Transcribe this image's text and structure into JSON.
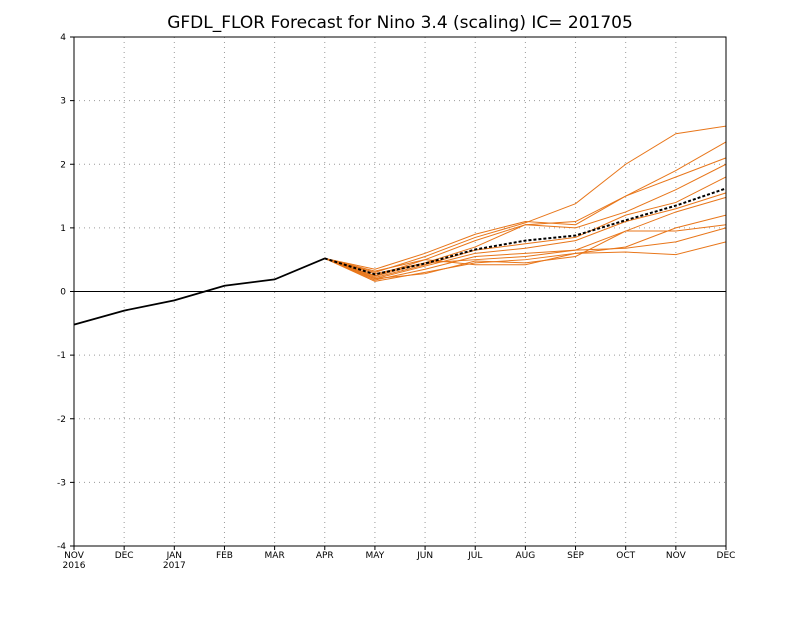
{
  "chart_data": {
    "type": "line",
    "title": "GFDL_FLOR Forecast for Nino 3.4 (scaling) IC= 201705",
    "xlabel": "",
    "ylabel": "",
    "ylim": [
      -4,
      4
    ],
    "y_ticks": [
      -4,
      -3,
      -2,
      -1,
      0,
      1,
      2,
      3,
      4
    ],
    "grid": true,
    "x_ticks": [
      {
        "label": "NOV",
        "sub": "2016"
      },
      {
        "label": "DEC",
        "sub": ""
      },
      {
        "label": "JAN",
        "sub": "2017"
      },
      {
        "label": "FEB",
        "sub": ""
      },
      {
        "label": "MAR",
        "sub": ""
      },
      {
        "label": "APR",
        "sub": ""
      },
      {
        "label": "MAY",
        "sub": ""
      },
      {
        "label": "JUN",
        "sub": ""
      },
      {
        "label": "JUL",
        "sub": ""
      },
      {
        "label": "AUG",
        "sub": ""
      },
      {
        "label": "SEP",
        "sub": ""
      },
      {
        "label": "OCT",
        "sub": ""
      },
      {
        "label": "NOV",
        "sub": ""
      },
      {
        "label": "DEC",
        "sub": ""
      }
    ],
    "observed": {
      "color": "#000000",
      "x": [
        0,
        1,
        2,
        3,
        4,
        5
      ],
      "values": [
        -0.52,
        -0.3,
        -0.14,
        0.09,
        0.19,
        0.52
      ]
    },
    "ensemble_color": "#e8761a",
    "ensemble_x": [
      5,
      6,
      7,
      8,
      9,
      10,
      11,
      12,
      13
    ],
    "ensemble": [
      [
        0.52,
        0.3,
        0.55,
        0.85,
        1.08,
        1.38,
        2.0,
        2.48,
        2.6
      ],
      [
        0.52,
        0.25,
        0.5,
        0.8,
        1.05,
        1.1,
        1.5,
        1.9,
        2.35
      ],
      [
        0.52,
        0.35,
        0.6,
        0.9,
        1.1,
        1.05,
        1.5,
        1.8,
        2.1
      ],
      [
        0.52,
        0.28,
        0.45,
        0.7,
        1.05,
        1.0,
        1.25,
        1.6,
        2.0
      ],
      [
        0.52,
        0.22,
        0.42,
        0.65,
        0.75,
        0.85,
        1.2,
        1.4,
        1.8
      ],
      [
        0.52,
        0.2,
        0.4,
        0.6,
        0.68,
        0.8,
        1.1,
        1.3,
        1.55
      ],
      [
        0.52,
        0.18,
        0.35,
        0.55,
        0.6,
        0.65,
        0.95,
        1.25,
        1.48
      ],
      [
        0.52,
        0.16,
        0.3,
        0.45,
        0.5,
        0.6,
        0.7,
        1.0,
        1.2
      ],
      [
        0.52,
        0.2,
        0.28,
        0.48,
        0.45,
        0.55,
        0.95,
        0.95,
        1.05
      ],
      [
        0.52,
        0.24,
        0.45,
        0.5,
        0.55,
        0.65,
        0.68,
        0.78,
        1.0
      ],
      [
        0.52,
        0.32,
        0.5,
        0.42,
        0.42,
        0.6,
        0.62,
        0.58,
        0.78
      ]
    ],
    "mean": {
      "color": "#000000",
      "x": [
        5,
        6,
        7,
        8,
        9,
        10,
        11,
        12,
        13
      ],
      "values": [
        0.52,
        0.27,
        0.44,
        0.66,
        0.8,
        0.88,
        1.12,
        1.35,
        1.62
      ]
    }
  }
}
